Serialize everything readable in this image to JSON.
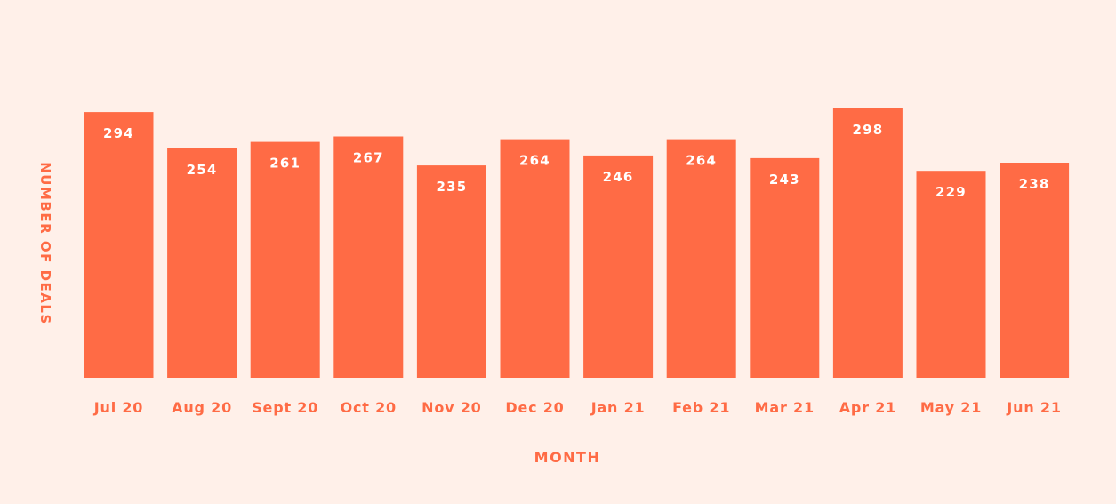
{
  "chart_data": {
    "type": "bar",
    "categories": [
      "Jul 20",
      "Aug 20",
      "Sept 20",
      "Oct 20",
      "Nov 20",
      "Dec 20",
      "Jan 21",
      "Feb 21",
      "Mar 21",
      "Apr 21",
      "May 21",
      "Jun 21"
    ],
    "values": [
      294,
      254,
      261,
      267,
      235,
      264,
      246,
      264,
      243,
      298,
      229,
      238
    ],
    "xlabel": "MONTH",
    "ylabel": "NUMBER OF DEALS",
    "grid": false,
    "legend": "none",
    "colors": {
      "bar": "#ff6b45",
      "label": "#ff6b45",
      "value_label": "#ffffff",
      "background": "#fff0e9"
    }
  }
}
